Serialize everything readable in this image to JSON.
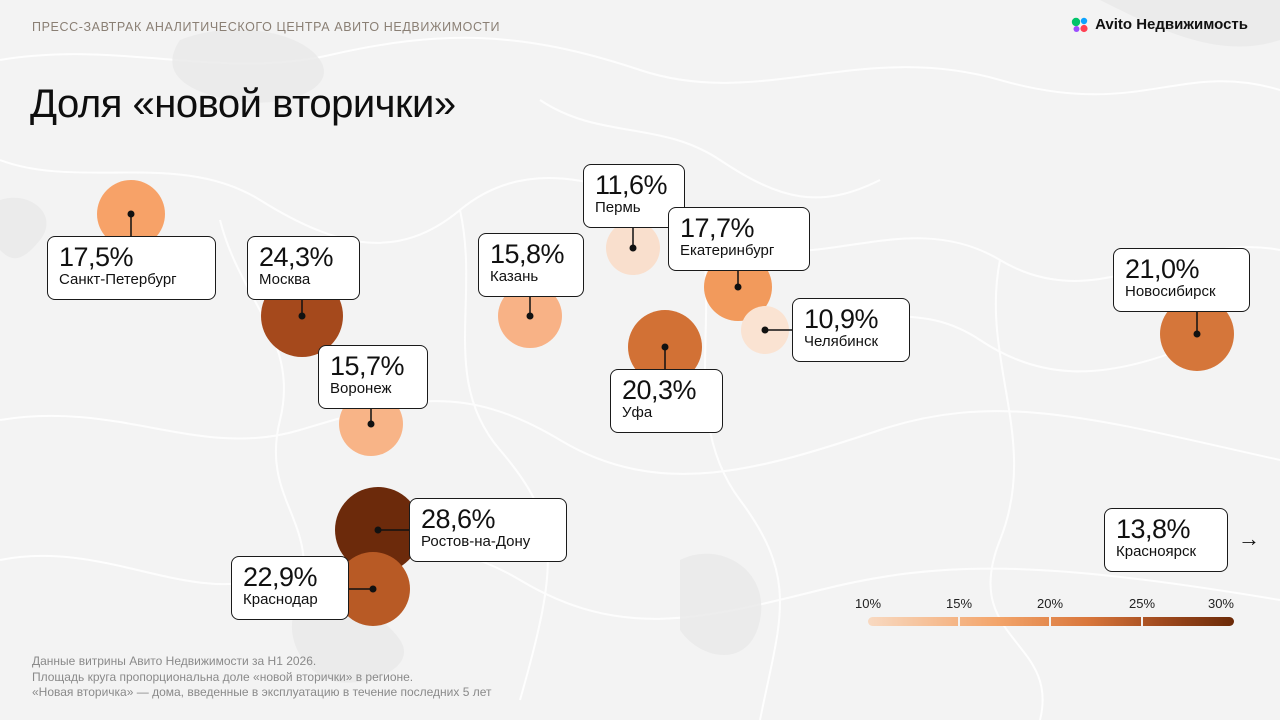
{
  "header": {
    "event_text": "ПРЕСС-ЗАВТРАК АНАЛИТИЧЕСКОГО ЦЕНТРА АВИТО НЕДВИЖИМОСТИ",
    "logo_text": "Avito Недвижимость",
    "logo_icon": "avito-dots-icon"
  },
  "title": "Доля «новой вторички»",
  "cities": [
    {
      "id": "spb",
      "name": "Санкт-Петербург",
      "share": 17.5,
      "share_label": "17,5%",
      "color": "#f7a268"
    },
    {
      "id": "msk",
      "name": "Москва",
      "share": 24.3,
      "share_label": "24,3%",
      "color": "#a5491c"
    },
    {
      "id": "vrn",
      "name": "Воронеж",
      "share": 15.7,
      "share_label": "15,7%",
      "color": "#f8b487"
    },
    {
      "id": "kzn",
      "name": "Казань",
      "share": 15.8,
      "share_label": "15,8%",
      "color": "#f8b286"
    },
    {
      "id": "prm",
      "name": "Пермь",
      "share": 11.6,
      "share_label": "11,6%",
      "color": "#f9dfcd"
    },
    {
      "id": "ekb",
      "name": "Екатеринбург",
      "share": 17.7,
      "share_label": "17,7%",
      "color": "#f29a5c"
    },
    {
      "id": "chl",
      "name": "Челябинск",
      "share": 10.9,
      "share_label": "10,9%",
      "color": "#fae3d2"
    },
    {
      "id": "ufa",
      "name": "Уфа",
      "share": 20.3,
      "share_label": "20,3%",
      "color": "#d27135"
    },
    {
      "id": "nsk",
      "name": "Новосибирск",
      "share": 21.0,
      "share_label": "21,0%",
      "color": "#d5763a"
    },
    {
      "id": "rnd",
      "name": "Ростов-на-Дону",
      "share": 28.6,
      "share_label": "28,6%",
      "color": "#6c2a0b"
    },
    {
      "id": "krd",
      "name": "Краснодар",
      "share": 22.9,
      "share_label": "22,9%",
      "color": "#b85a25"
    },
    {
      "id": "krs",
      "name": "Красноярск",
      "share": 13.8,
      "share_label": "13,8%",
      "color": "",
      "offscreen": true
    }
  ],
  "legend": {
    "ticks": [
      "10%",
      "15%",
      "20%",
      "25%",
      "30%"
    ],
    "color_min": "#f8d9c1",
    "color_max": "#6b2a08"
  },
  "footnote": [
    "Данные витрины Авито Недвижимости за Н1 2026.",
    "Площадь круга пропорциональна доле «новой вторички» в регионе.",
    "«Новая вторичка» — дома, введенные в эксплуатацию в течение последних 5 лет"
  ],
  "accent_colors": {
    "logo_green": "#00c46a",
    "logo_blue": "#0aa2ff",
    "logo_purple": "#9b4dff",
    "logo_red": "#ff4053"
  }
}
